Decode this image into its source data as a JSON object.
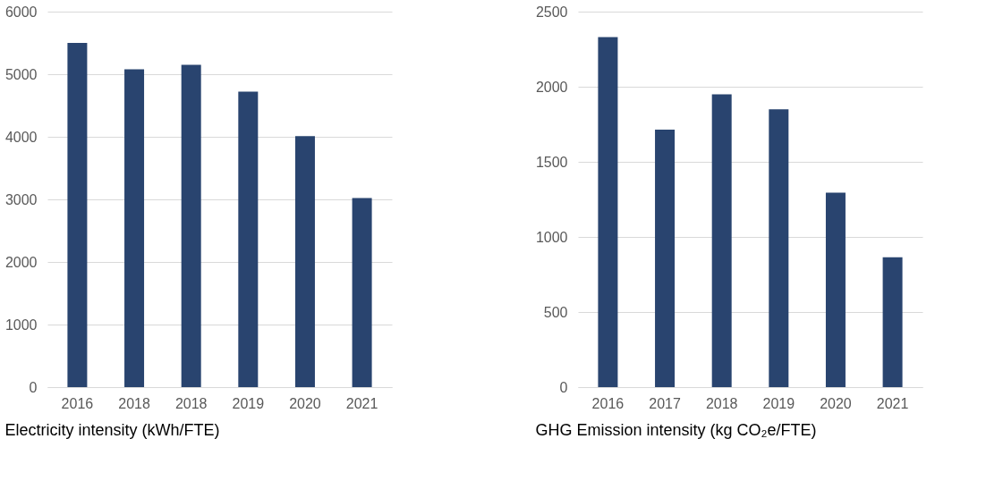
{
  "chart_data": [
    {
      "type": "bar",
      "title": "Electricity intensity (kWh/FTE)",
      "categories": [
        "2016",
        "2018",
        "2018",
        "2019",
        "2020",
        "2021"
      ],
      "values": [
        5500,
        5080,
        5150,
        4720,
        4010,
        3020
      ],
      "color": "#29446f",
      "ylim": [
        0,
        6000
      ],
      "yticks": [
        0,
        1000,
        2000,
        3000,
        4000,
        5000,
        6000
      ],
      "grid": "y"
    },
    {
      "type": "bar",
      "title": "GHG Emission intensity (kg CO₂e/FTE)",
      "categories": [
        "2016",
        "2017",
        "2018",
        "2019",
        "2020",
        "2021"
      ],
      "values": [
        2330,
        1715,
        1950,
        1850,
        1295,
        865
      ],
      "color": "#29446f",
      "ylim": [
        0,
        2500
      ],
      "yticks": [
        0,
        500,
        1000,
        1500,
        2000,
        2500
      ],
      "grid": "y"
    }
  ]
}
